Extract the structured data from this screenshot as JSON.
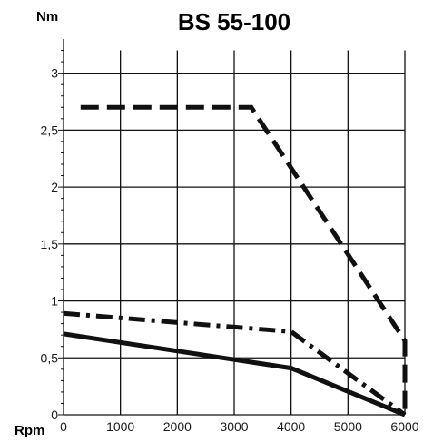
{
  "chart_data": {
    "type": "line",
    "title": "BS 55-100",
    "xlabel": "Rpm",
    "ylabel": "Nm",
    "xlim": [
      0,
      6000
    ],
    "ylim": [
      0,
      3.2
    ],
    "x_ticks": [
      0,
      1000,
      2000,
      3000,
      4000,
      5000,
      6000
    ],
    "x_tick_labels": [
      "0",
      "1000",
      "2000",
      "3000",
      "4000",
      "5000",
      "6000"
    ],
    "y_ticks": [
      0,
      0.5,
      1,
      1.5,
      2,
      2.5,
      3
    ],
    "y_tick_labels": [
      "0",
      "0,5",
      "1",
      "1,5",
      "2",
      "2,5",
      "3"
    ],
    "grid": true,
    "legend": "none",
    "series": [
      {
        "style": "dashed",
        "color": "#111111",
        "x": [
          300,
          3300,
          6000,
          6000
        ],
        "y": [
          2.7,
          2.7,
          0.65,
          0
        ]
      },
      {
        "style": "dash-dot",
        "color": "#111111",
        "x": [
          0,
          4000,
          6000
        ],
        "y": [
          0.89,
          0.73,
          0
        ]
      },
      {
        "style": "solid",
        "color": "#111111",
        "x": [
          0,
          4000,
          6000
        ],
        "y": [
          0.71,
          0.41,
          0
        ]
      }
    ]
  }
}
